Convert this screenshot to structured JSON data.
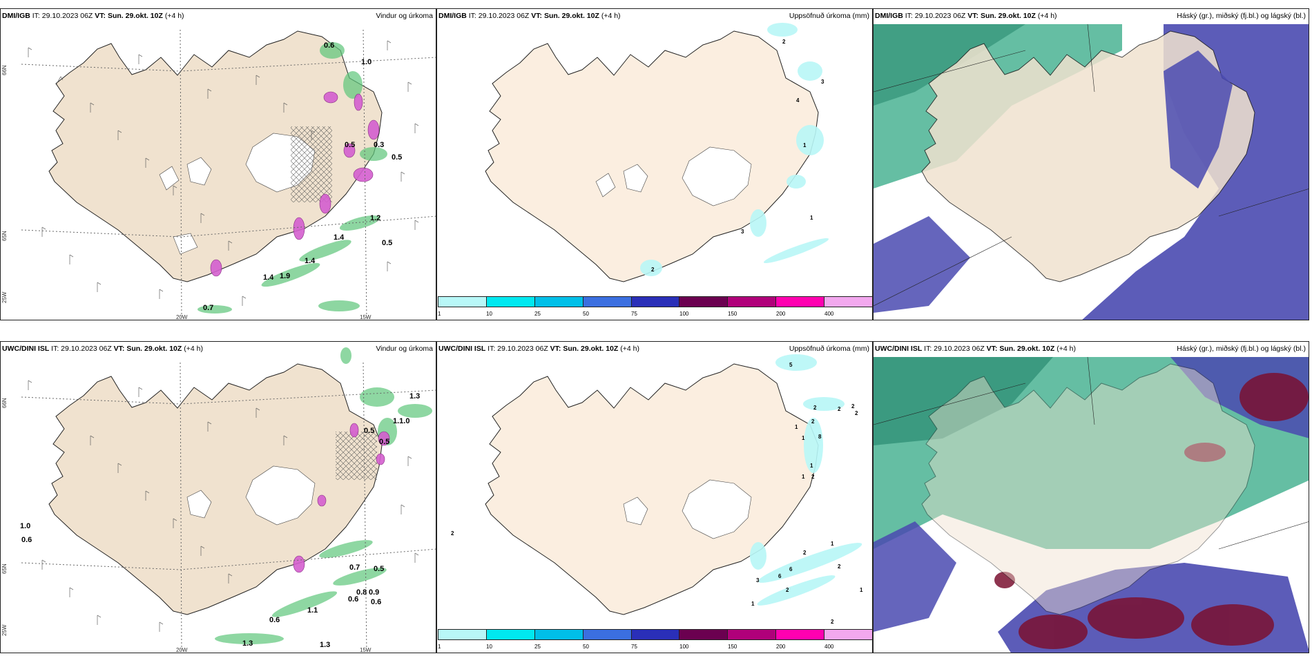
{
  "panels": [
    {
      "id": "p1",
      "source": "DMI/IGB",
      "it": "IT: 29.10.2023 06Z",
      "vt_label": "VT:",
      "vt_value": "Sun. 29.okt. 10Z",
      "lead": "(+4 h)",
      "title": "Vindur og úrkoma",
      "labels": [
        "0.6",
        "1.0",
        "0.5",
        "0.3",
        "0.5",
        "1.2",
        "1.4",
        "0.5",
        "1.4",
        "1.9",
        "1.4",
        "0.7"
      ],
      "axis": [
        "66N",
        "65N",
        "25W",
        "20W",
        "15W"
      ]
    },
    {
      "id": "p2",
      "source": "DMI/IGB",
      "it": "IT: 29.10.2023 06Z",
      "vt_label": "VT:",
      "vt_value": "Sun. 29.okt. 10Z",
      "lead": "(+4 h)",
      "title": "Uppsöfnuð úrkoma (mm)",
      "labels": [
        "2",
        "3",
        "4",
        "1",
        "1",
        "3",
        "2"
      ]
    },
    {
      "id": "p3",
      "source": "DMI/IGB",
      "it": "IT: 29.10.2023 06Z",
      "vt_label": "VT:",
      "vt_value": "Sun. 29.okt. 10Z",
      "lead": "(+4 h)",
      "title": "Háský (gr.), miðský (fj.bl.) og lágský (bl.)"
    },
    {
      "id": "p4",
      "source": "UWC/DINI ISL",
      "it": "IT: 29.10.2023 06Z",
      "vt_label": "VT:",
      "vt_value": "Sun. 29.okt. 10Z",
      "lead": "(+4 h)",
      "title": "Vindur og úrkoma",
      "labels": [
        "1.3",
        "0.5",
        "1.1.0",
        "0.5",
        "1.0",
        "0.6",
        "0.7",
        "0.5",
        "0.8",
        "0.9",
        "0.6",
        "0.6",
        "1.1",
        "0.6",
        "1.3",
        "1.3"
      ],
      "axis": [
        "66N",
        "65N",
        "25W",
        "20W",
        "15W"
      ]
    },
    {
      "id": "p5",
      "source": "UWC/DINI ISL",
      "it": "IT: 29.10.2023 06Z",
      "vt_label": "VT:",
      "vt_value": "Sun. 29.okt. 10Z",
      "lead": "(+4 h)",
      "title": "Uppsöfnuð úrkoma (mm)",
      "labels": [
        "5",
        "2",
        "2",
        "2",
        "2",
        "1",
        "8",
        "1",
        "1",
        "2",
        "2",
        "1",
        "2",
        "1",
        "2",
        "6",
        "3",
        "6",
        "2",
        "1",
        "2",
        "1",
        "2"
      ]
    },
    {
      "id": "p6",
      "source": "UWC/DINI ISL",
      "it": "IT: 29.10.2023 06Z",
      "vt_label": "VT:",
      "vt_value": "Sun. 29.okt. 10Z",
      "lead": "(+4 h)",
      "title": "Háský (gr.), miðský (fj.bl.) og lágský (bl.)"
    }
  ],
  "legend": {
    "ticks": [
      "1",
      "10",
      "25",
      "50",
      "75",
      "100",
      "150",
      "200",
      "400"
    ],
    "colors": [
      "#b8f7f7",
      "#00e8f0",
      "#00bfe8",
      "#3b6fe0",
      "#2a2fb8",
      "#6b0050",
      "#b0007a",
      "#ff00b0",
      "#f2a8ee"
    ]
  },
  "colors": {
    "land": "#f0e2cf",
    "land_light": "#fbeee0",
    "rain_green": "#5ec67a",
    "snow_magenta": "#d45fcf",
    "high_cloud": "#3fae8c",
    "mid_cloud": "#4a4ab0",
    "low_cloud": "#7a1030"
  }
}
